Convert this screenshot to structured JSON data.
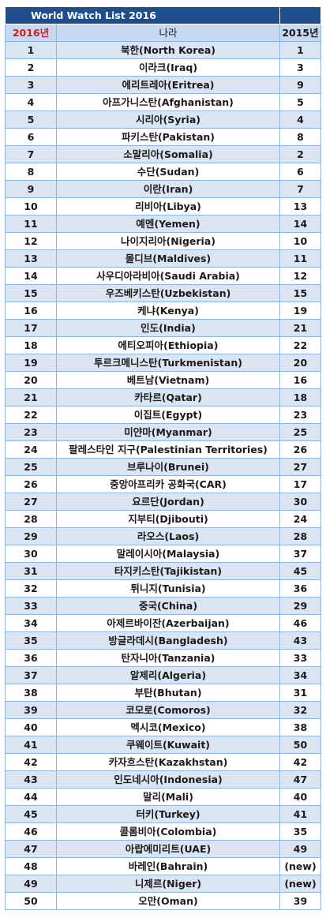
{
  "title": "World Watch List 2016",
  "headers": {
    "rank2016": "2016년",
    "country": "나라",
    "rank2015": "2015년"
  },
  "colors": {
    "title_bg": "#1f4e8c",
    "header_bg": "#c6d9f1",
    "stripe": "#dbe5f1",
    "rank_red": "#d81b1b",
    "border": "#8eb4e3"
  },
  "rows": [
    {
      "r": "1",
      "c": "북한(North Korea)",
      "p": "1"
    },
    {
      "r": "2",
      "c": "이라크(Iraq)",
      "p": "3"
    },
    {
      "r": "3",
      "c": "에리트레아(Eritrea)",
      "p": "9"
    },
    {
      "r": "4",
      "c": "아프가니스탄(Afghanistan)",
      "p": "5"
    },
    {
      "r": "5",
      "c": "시리아(Syria)",
      "p": "4"
    },
    {
      "r": "6",
      "c": "파키스탄(Pakistan)",
      "p": "8"
    },
    {
      "r": "7",
      "c": "소말리아(Somalia)",
      "p": "2"
    },
    {
      "r": "8",
      "c": "수단(Sudan)",
      "p": "6"
    },
    {
      "r": "9",
      "c": "이란(Iran)",
      "p": "7"
    },
    {
      "r": "10",
      "c": "리비아(Libya)",
      "p": "13"
    },
    {
      "r": "11",
      "c": "예멘(Yemen)",
      "p": "14"
    },
    {
      "r": "12",
      "c": "나이지리아(Nigeria)",
      "p": "10"
    },
    {
      "r": "13",
      "c": "몰디브(Maldives)",
      "p": "11"
    },
    {
      "r": "14",
      "c": "사우디아라비아(Saudi Arabia)",
      "p": "12"
    },
    {
      "r": "15",
      "c": "우즈베키스탄(Uzbekistan)",
      "p": "15"
    },
    {
      "r": "16",
      "c": "케냐(Kenya)",
      "p": "19"
    },
    {
      "r": "17",
      "c": "인도(India)",
      "p": "21"
    },
    {
      "r": "18",
      "c": "에티오피아(Ethiopia)",
      "p": "22"
    },
    {
      "r": "19",
      "c": "투르크메니스탄(Turkmenistan)",
      "p": "20"
    },
    {
      "r": "20",
      "c": "베트남(Vietnam)",
      "p": "16"
    },
    {
      "r": "21",
      "c": "카타르(Qatar)",
      "p": "18"
    },
    {
      "r": "22",
      "c": "이집트(Egypt)",
      "p": "23"
    },
    {
      "r": "23",
      "c": "미얀마(Myanmar)",
      "p": "25"
    },
    {
      "r": "24",
      "c": "팔레스타인 지구(Palestinian Territories)",
      "p": "26"
    },
    {
      "r": "25",
      "c": "브루나이(Brunei)",
      "p": "27"
    },
    {
      "r": "26",
      "c": "중앙아프리카 공화국(CAR)",
      "p": "17"
    },
    {
      "r": "27",
      "c": "요르단(Jordan)",
      "p": "30"
    },
    {
      "r": "28",
      "c": "지부티(Djibouti)",
      "p": "24"
    },
    {
      "r": "29",
      "c": "라오스(Laos)",
      "p": "28"
    },
    {
      "r": "30",
      "c": "말레이시아(Malaysia)",
      "p": "37"
    },
    {
      "r": "31",
      "c": "타지키스탄(Tajikistan)",
      "p": "45"
    },
    {
      "r": "32",
      "c": "튀니지(Tunisia)",
      "p": "36"
    },
    {
      "r": "33",
      "c": "중국(China)",
      "p": "29"
    },
    {
      "r": "34",
      "c": "아제르바이잔(Azerbaijan)",
      "p": "46"
    },
    {
      "r": "35",
      "c": "방글라데시(Bangladesh)",
      "p": "43"
    },
    {
      "r": "36",
      "c": "탄자니아(Tanzania)",
      "p": "33"
    },
    {
      "r": "37",
      "c": "알제리(Algeria)",
      "p": "34"
    },
    {
      "r": "38",
      "c": "부탄(Bhutan)",
      "p": "31"
    },
    {
      "r": "39",
      "c": "코모로(Comoros)",
      "p": "32"
    },
    {
      "r": "40",
      "c": "멕시코(Mexico)",
      "p": "38"
    },
    {
      "r": "41",
      "c": "쿠웨이트(Kuwait)",
      "p": "50"
    },
    {
      "r": "42",
      "c": "카자흐스탄(Kazakhstan)",
      "p": "42"
    },
    {
      "r": "43",
      "c": "인도네시아(Indonesia)",
      "p": "47"
    },
    {
      "r": "44",
      "c": "말리(Mali)",
      "p": "40"
    },
    {
      "r": "45",
      "c": "터키(Turkey)",
      "p": "41"
    },
    {
      "r": "46",
      "c": "콜롬비아(Colombia)",
      "p": "35"
    },
    {
      "r": "47",
      "c": "아랍에미리트(UAE)",
      "p": "49"
    },
    {
      "r": "48",
      "c": "바레인(Bahrain)",
      "p": "(new)"
    },
    {
      "r": "49",
      "c": "니제르(Niger)",
      "p": "(new)"
    },
    {
      "r": "50",
      "c": "오만(Oman)",
      "p": "39"
    }
  ]
}
